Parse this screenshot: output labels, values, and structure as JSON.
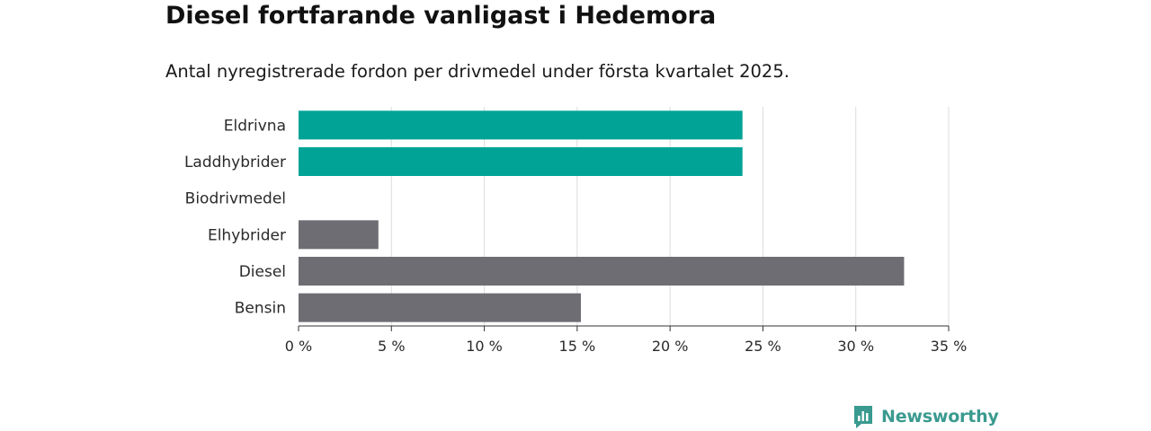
{
  "header": {
    "title": "Diesel fortfarande vanligast i Hedemora",
    "subtitle": "Antal nyregistrerade fordon per drivmedel under första kvartalet 2025."
  },
  "chart_data": {
    "type": "bar",
    "orientation": "horizontal",
    "categories": [
      "Eldrivna",
      "Laddhybrider",
      "Biodrivmedel",
      "Elhybrider",
      "Diesel",
      "Bensin"
    ],
    "values": [
      23.9,
      23.9,
      0,
      4.3,
      32.6,
      15.2
    ],
    "value_unit": "%",
    "colors": [
      "#00a396",
      "#00a396",
      "#6e6d74",
      "#6e6d74",
      "#6e6d74",
      "#6e6d74"
    ],
    "xlim": [
      0,
      35
    ],
    "x_ticks": [
      0,
      5,
      10,
      15,
      20,
      25,
      30,
      35
    ],
    "x_tick_labels": [
      "0 %",
      "5 %",
      "10 %",
      "15 %",
      "20 %",
      "25 %",
      "30 %",
      "35 %"
    ],
    "grid": true
  },
  "branding": {
    "logo_text": "Newsworthy",
    "logo_color": "#3a9a8f"
  }
}
